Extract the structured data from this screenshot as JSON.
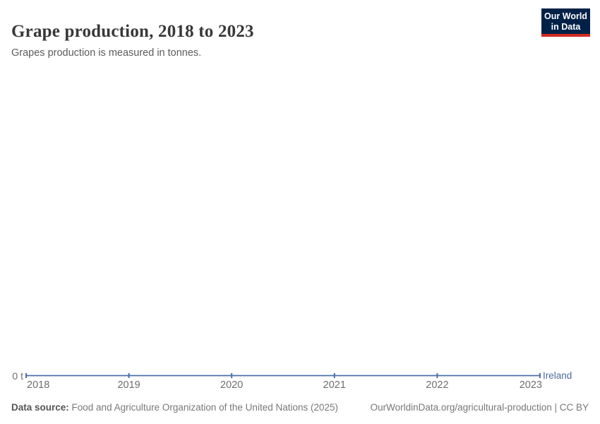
{
  "header": {
    "title": "Grape production, 2018 to 2023",
    "subtitle": "Grapes production is measured in tonnes."
  },
  "logo": {
    "line1": "Our World",
    "line2": "in Data",
    "bg_color": "#002147",
    "bar_color": "#d42b21",
    "text_color": "#ffffff"
  },
  "chart_data": {
    "type": "line",
    "title": "Grape production, 2018 to 2023",
    "subtitle": "Grapes production is measured in tonnes.",
    "unit": "tonnes",
    "x": [
      2018,
      2019,
      2020,
      2021,
      2022,
      2023
    ],
    "series": [
      {
        "name": "Ireland",
        "values": [
          0,
          0,
          0,
          0,
          0,
          0
        ],
        "color": "#4c6ea9"
      }
    ],
    "y_ticks": [
      "0 t"
    ],
    "ylim": [
      0,
      0
    ],
    "grid": false,
    "legend_position": "line-end-label",
    "label_color": "#4c6a9c",
    "axis_text_color": "#6e6e6e"
  },
  "footer": {
    "source_label": "Data source:",
    "source_text": " Food and Agriculture Organization of the United Nations (2025)",
    "credit": "OurWorldinData.org/agricultural-production | CC BY"
  }
}
